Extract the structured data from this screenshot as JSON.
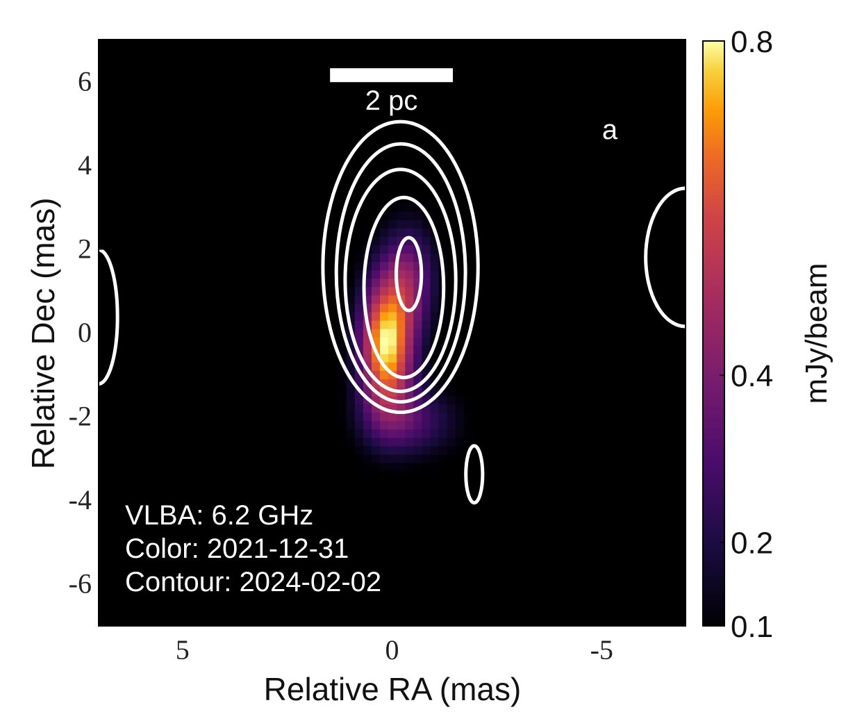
{
  "chart_data": {
    "type": "heatmap",
    "panel_label": "a",
    "xlabel": "Relative RA (mas)",
    "ylabel": "Relative Dec (mas)",
    "xlim": [
      7,
      -7
    ],
    "ylim": [
      -7,
      7
    ],
    "xticks": [
      {
        "value": 5,
        "label": "5"
      },
      {
        "value": 0,
        "label": "0"
      },
      {
        "value": -5,
        "label": "-5"
      }
    ],
    "yticks": [
      {
        "value": 6,
        "label": "6"
      },
      {
        "value": 4,
        "label": "4"
      },
      {
        "value": 2,
        "label": "2"
      },
      {
        "value": 0,
        "label": "0"
      },
      {
        "value": -2,
        "label": "-2"
      },
      {
        "value": -4,
        "label": "-4"
      },
      {
        "value": -6,
        "label": "-6"
      }
    ],
    "minor_tick_step": 1,
    "colorbar": {
      "label": "mJy/beam",
      "colormap": "inferno",
      "range": [
        0.1,
        0.8
      ],
      "ticks": [
        {
          "value": 0.8,
          "label": "0.8"
        },
        {
          "value": 0.4,
          "label": "0.4"
        },
        {
          "value": 0.2,
          "label": "0.2"
        },
        {
          "value": 0.1,
          "label": "0.1"
        }
      ]
    },
    "heatmap_pixel_size_mas": 0.2,
    "heatmap_components": [
      {
        "ra": 0.15,
        "dec": -0.3,
        "peak": 0.72,
        "sigma_ra": 0.45,
        "sigma_dec": 1.1
      },
      {
        "ra": -0.4,
        "dec": 1.3,
        "peak": 0.3,
        "sigma_ra": 0.45,
        "sigma_dec": 0.9
      },
      {
        "ra": -0.4,
        "dec": -2.1,
        "peak": 0.22,
        "sigma_ra": 0.8,
        "sigma_dec": 0.6
      }
    ],
    "contours": [
      {
        "ra": -0.2,
        "dec": 1.57,
        "a": 1.85,
        "b": 3.47
      },
      {
        "ra": -0.21,
        "dec": 1.43,
        "a": 1.54,
        "b": 3.08
      },
      {
        "ra": -0.2,
        "dec": 1.25,
        "a": 1.32,
        "b": 2.65
      },
      {
        "ra": -0.28,
        "dec": 1.08,
        "a": 0.95,
        "b": 2.15
      },
      {
        "ra": -0.4,
        "dec": 1.4,
        "a": 0.3,
        "b": 0.87
      },
      {
        "ra": 7.0,
        "dec": 0.38,
        "a": 0.45,
        "b": 1.6
      },
      {
        "ra": -7.0,
        "dec": 1.8,
        "a": 0.95,
        "b": 1.65
      },
      {
        "ra": -1.96,
        "dec": -3.38,
        "a": 0.2,
        "b": 0.68
      }
    ],
    "scale_bar": {
      "label": "2 pc",
      "ra_start": 1.48,
      "ra_end": -1.45,
      "dec": 6.15
    },
    "annotations": [
      "VLBA: 6.2 GHz",
      "Color: 2021-12-31",
      "Contour: 2024-02-02"
    ]
  }
}
